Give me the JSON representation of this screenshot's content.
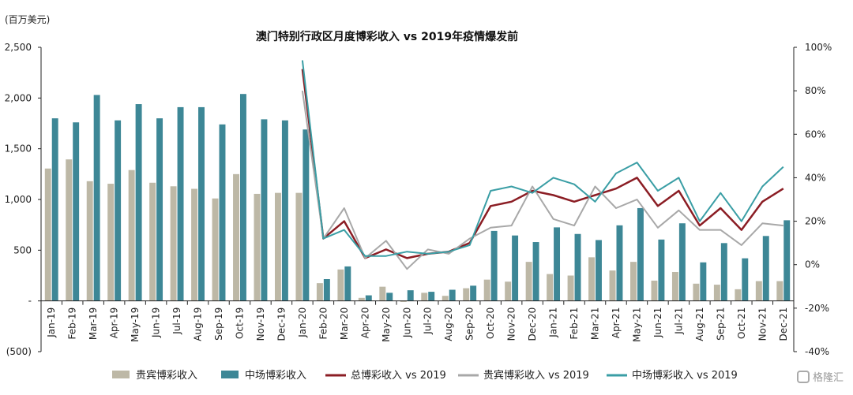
{
  "unit_label": "(百万美元)",
  "watermark": "格隆汇",
  "chart_data": {
    "type": "bar",
    "title": "澳门特别行政区月度博彩收入 vs 2019年疫情爆发前",
    "categories": [
      "Jan-19",
      "Feb-19",
      "Mar-19",
      "Apr-19",
      "May-19",
      "Jun-19",
      "Jul-19",
      "Aug-19",
      "Sep-19",
      "Oct-19",
      "Nov-19",
      "Dec-19",
      "Jan-20",
      "Feb-20",
      "Mar-20",
      "Apr-20",
      "May-20",
      "Jun-20",
      "Jul-20",
      "Aug-20",
      "Sep-20",
      "Oct-20",
      "Nov-20",
      "Dec-20",
      "Jan-21",
      "Feb-21",
      "Mar-21",
      "Apr-21",
      "May-21",
      "Jun-21",
      "Jul-21",
      "Aug-21",
      "Sep-21",
      "Oct-21",
      "Nov-21",
      "Dec-21"
    ],
    "left_axis": {
      "ylim": [
        -500,
        2500
      ],
      "ticks": [
        -500,
        0,
        500,
        1000,
        1500,
        2000,
        2500
      ],
      "tick_labels": [
        "(500)",
        "-",
        "500",
        "1,000",
        "1,500",
        "2,000",
        "2,500"
      ]
    },
    "right_axis": {
      "ylim": [
        -40,
        100
      ],
      "ticks": [
        -40,
        -20,
        0,
        20,
        40,
        60,
        80,
        100
      ],
      "tick_labels": [
        "-40%",
        "-20%",
        "0%",
        "20%",
        "40%",
        "60%",
        "80%",
        "100%"
      ]
    },
    "bar_series": [
      {
        "name": "贵宾博彩收入",
        "color": "#bdb8a6",
        "values": [
          1305,
          1395,
          1180,
          1155,
          1290,
          1165,
          1130,
          1105,
          1010,
          1250,
          1055,
          1065,
          1065,
          175,
          310,
          30,
          140,
          -10,
          80,
          50,
          125,
          210,
          190,
          385,
          265,
          250,
          430,
          300,
          385,
          200,
          285,
          170,
          160,
          115,
          195,
          195
        ]
      },
      {
        "name": "中场博彩收入",
        "color": "#3d8796",
        "values": [
          1800,
          1760,
          2030,
          1780,
          1940,
          1800,
          1910,
          1910,
          1740,
          2040,
          1790,
          1780,
          1690,
          215,
          340,
          55,
          80,
          105,
          90,
          110,
          150,
          690,
          645,
          580,
          725,
          660,
          600,
          745,
          915,
          605,
          765,
          380,
          570,
          420,
          640,
          795
        ]
      }
    ],
    "line_series": [
      {
        "name": "总博彩收入 vs 2019",
        "color": "#8b1d24",
        "values": [
          null,
          null,
          null,
          null,
          null,
          null,
          null,
          null,
          null,
          null,
          null,
          null,
          90,
          12,
          20,
          3,
          7,
          3,
          5,
          6,
          10,
          27,
          29,
          34,
          32,
          29,
          32,
          35,
          40,
          27,
          34,
          18,
          26,
          16,
          29,
          35
        ]
      },
      {
        "name": "贵宾博彩收入 vs 2019",
        "color": "#a8a8a8",
        "values": [
          null,
          null,
          null,
          null,
          null,
          null,
          null,
          null,
          null,
          null,
          null,
          null,
          80,
          12,
          26,
          3,
          11,
          -2,
          7,
          5,
          12,
          17,
          18,
          36,
          21,
          18,
          36,
          26,
          30,
          17,
          25,
          16,
          16,
          9,
          19,
          18
        ]
      },
      {
        "name": "中场博彩收入 vs 2019",
        "color": "#3a9ea5",
        "values": [
          null,
          null,
          null,
          null,
          null,
          null,
          null,
          null,
          null,
          null,
          null,
          null,
          94,
          12,
          16,
          4,
          4,
          6,
          5,
          6,
          9,
          34,
          36,
          33,
          40,
          37,
          29,
          42,
          47,
          34,
          40,
          20,
          33,
          20,
          36,
          45
        ]
      }
    ]
  }
}
